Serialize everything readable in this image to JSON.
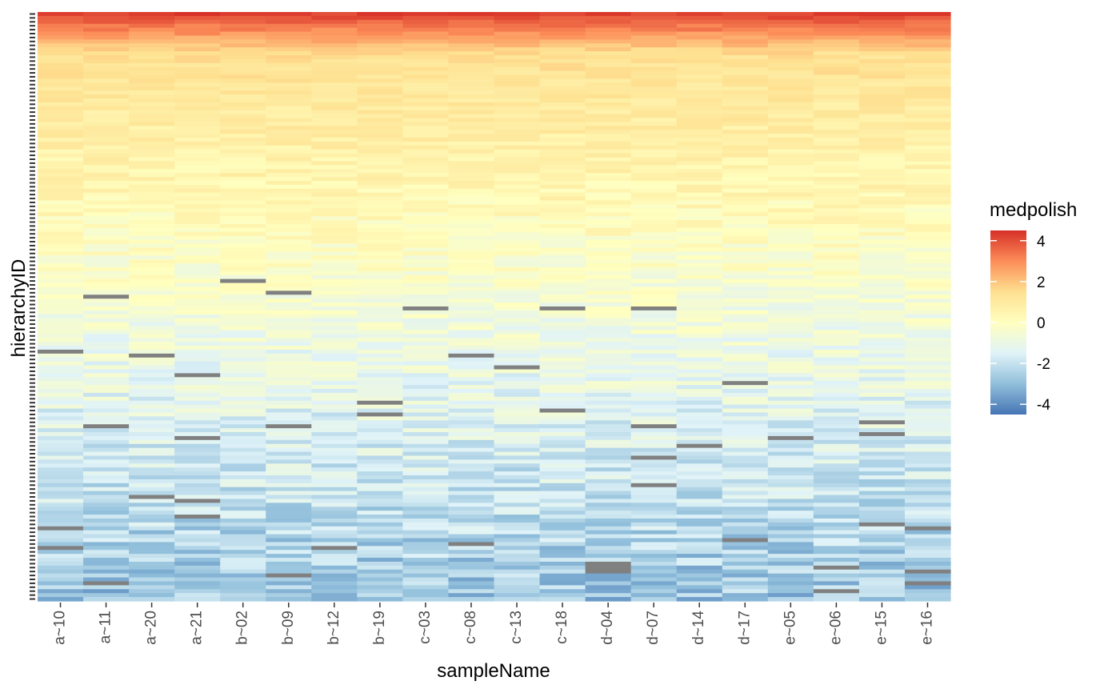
{
  "chart_data": {
    "type": "heatmap",
    "title": "",
    "xlabel": "sampleName",
    "ylabel": "hierarchyID",
    "x_categories": [
      "a~10",
      "a~11",
      "a~20",
      "a~21",
      "b~02",
      "b~09",
      "b~12",
      "b~19",
      "c~03",
      "c~08",
      "c~13",
      "c~18",
      "d~04",
      "d~07",
      "d~14",
      "d~17",
      "e~05",
      "e~06",
      "e~15",
      "e~16"
    ],
    "y_tick_labels_visible": false,
    "legend": {
      "title": "medpolish",
      "ticks": [
        4,
        2,
        0,
        -2,
        -4
      ],
      "tick_labels": [
        "4",
        "2",
        "0",
        "-2",
        "-4"
      ],
      "range": [
        -4.5,
        4.5
      ],
      "placement": "right",
      "colors": [
        "#4575b4",
        "#91bfdb",
        "#e0f3f8",
        "#ffffbf",
        "#fee090",
        "#fc8d59",
        "#d73027"
      ]
    },
    "missing_color": "#808080",
    "rows_described": "approx. 150 rows of hierarchyIDs, ordered top-to-bottom from high (~4) to low (~-3) medpolish values"
  }
}
